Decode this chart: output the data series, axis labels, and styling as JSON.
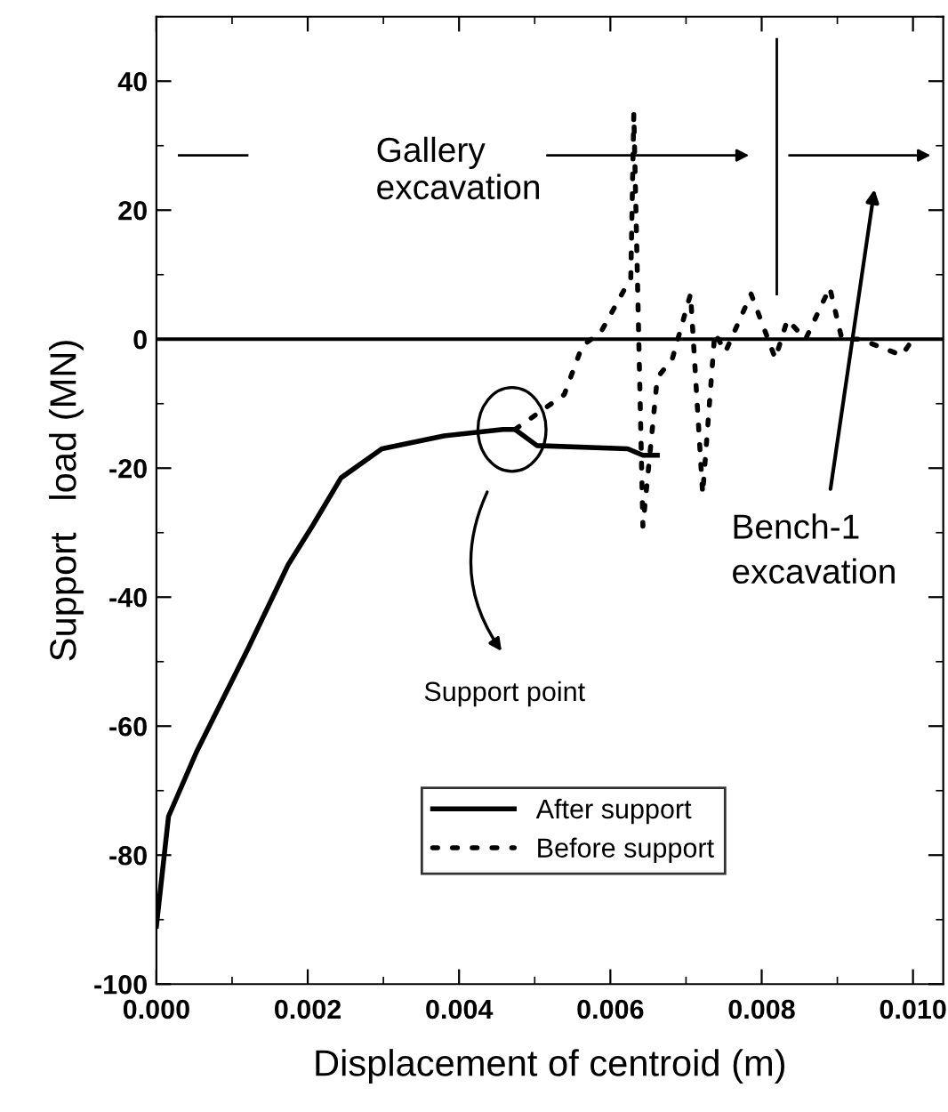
{
  "chart_data": {
    "type": "line",
    "xlabel": "Displacement of centroid (m)",
    "ylabel": "Support   load (MN)",
    "xlim": [
      0,
      0.0104
    ],
    "ylim": [
      -100,
      50
    ],
    "xticks": [
      {
        "value": 0,
        "label": "0.000"
      },
      {
        "value": 0.002,
        "label": "0.002"
      },
      {
        "value": 0.004,
        "label": "0.004"
      },
      {
        "value": 0.006,
        "label": "0.006"
      },
      {
        "value": 0.008,
        "label": "0.008"
      },
      {
        "value": 0.01,
        "label": "0.010"
      }
    ],
    "yticks": [
      -100,
      -80,
      -60,
      -40,
      -20,
      0,
      20,
      40
    ],
    "grid": false,
    "legend": "bottom",
    "series": [
      {
        "name": "After support",
        "color": "#000000",
        "line_style": "solid",
        "x": [
          0,
          0.00016,
          0.00053,
          0.00121,
          0.00174,
          0.00206,
          0.00244,
          0.00298,
          0.0038,
          0.00458,
          0.00474,
          0.00503,
          0.00623,
          0.00643,
          0.00662
        ],
        "values": [
          -91,
          -74,
          -64,
          -48,
          -35,
          -29,
          -21.5,
          -17,
          -15,
          -14,
          -14,
          -16.5,
          -17,
          -18,
          -18
        ]
      },
      {
        "name": "Before support",
        "color": "#000000",
        "line_style": "dotted",
        "x": [
          0.00474,
          0.00539,
          0.00563,
          0.00587,
          0.00627,
          0.00631,
          0.00643,
          0.00662,
          0.00682,
          0.00706,
          0.00722,
          0.00738,
          0.00752,
          0.00786,
          0.00818,
          0.00834,
          0.00858,
          0.0089,
          0.00906,
          0.0093,
          0.00985,
          0.01
        ],
        "values": [
          -14,
          -8.6,
          -1,
          1,
          9.5,
          35,
          -29,
          -6,
          -3,
          7,
          -24,
          1,
          -2,
          7,
          -3,
          3,
          0,
          8,
          0,
          0,
          -2.5,
          0
        ]
      }
    ],
    "ref_lines": [
      {
        "axis": "y",
        "value": 0,
        "color": "#000000",
        "line_style": "solid"
      }
    ],
    "annotations": [
      "Gallery\nexcavation",
      "Bench-1\nexcavation",
      "Support point"
    ]
  }
}
